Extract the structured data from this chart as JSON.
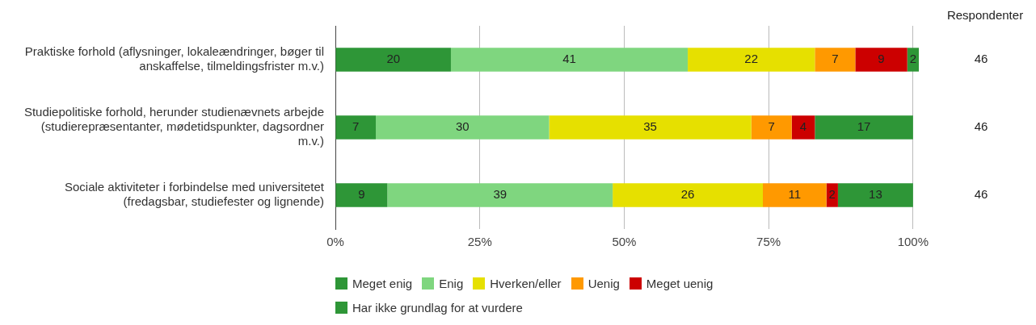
{
  "chart_data": {
    "type": "bar",
    "orientation": "horizontal",
    "stacked": true,
    "data_labels": true,
    "grid": "x",
    "legend": "bottom",
    "categories": [
      "Praktiske forhold (aflysninger, lokaleændringer, bøger til anskaffelse, tilmeldingsfrister m.v.)",
      "Studiepolitiske forhold, herunder studienævnets arbejde (studierepræsentanter, mødetidspunkter, dagsordner m.v.)",
      "Sociale aktiviteter i forbindelse med universitetet (fredagsbar, studiefester og lignende)"
    ],
    "series": [
      {
        "name": "Meget enig",
        "color": "#2e9637",
        "values": [
          20,
          7,
          9
        ]
      },
      {
        "name": "Enig",
        "color": "#7fd67f",
        "values": [
          41,
          30,
          39
        ]
      },
      {
        "name": "Hverken/eller",
        "color": "#e6e000",
        "values": [
          22,
          35,
          26
        ]
      },
      {
        "name": "Uenig",
        "color": "#ff9900",
        "values": [
          7,
          7,
          11
        ]
      },
      {
        "name": "Meget uenig",
        "color": "#cc0000",
        "values": [
          9,
          4,
          2
        ]
      },
      {
        "name": "Har ikke grundlag for at vurdere",
        "color": "#2e9637",
        "values": [
          2,
          17,
          13
        ]
      }
    ],
    "xlim": [
      0,
      101
    ],
    "xticks": [
      {
        "value": 0,
        "label": "0%"
      },
      {
        "value": 25,
        "label": "25%"
      },
      {
        "value": 50,
        "label": "50%"
      },
      {
        "value": 75,
        "label": "75%"
      },
      {
        "value": 100,
        "label": "100%"
      }
    ],
    "annotations": [
      "Respondenter",
      "46",
      "46",
      "46"
    ]
  }
}
